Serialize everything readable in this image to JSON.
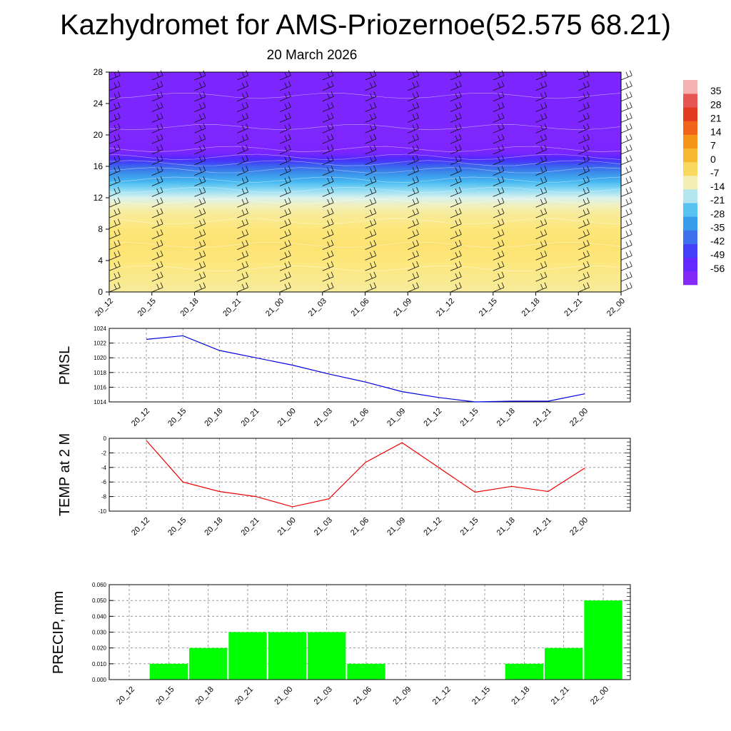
{
  "title": "Kazhydromet for AMS-Priozernoe(52.575 68.21)",
  "subtitle": "20 March 2026",
  "colors": {
    "pmsl_line": "#0000dd",
    "temp_line": "#ee0000",
    "precip_bar": "#00ff00",
    "grid": "#888888",
    "wind_barb": "#111111",
    "contour_line": "#ffffff"
  },
  "chart_data": [
    {
      "type": "heatmap",
      "name": "cross-section",
      "description_units": "temperature °C vs height",
      "x_tick_labels": [
        "20_12",
        "20_15",
        "20_18",
        "20_21",
        "21_00",
        "21_03",
        "21_06",
        "21_09",
        "21_12",
        "21_15",
        "21_18",
        "21_21",
        "22_00"
      ],
      "y_ticks": [
        0,
        4,
        8,
        12,
        16,
        20,
        24,
        28
      ],
      "ylim": [
        0,
        28
      ],
      "temperature_profile": {
        "levels": [
          0,
          2,
          4,
          6,
          8,
          10,
          11,
          12,
          13,
          14,
          15,
          16,
          16.5,
          17,
          17.5,
          18,
          20,
          22,
          24,
          28
        ],
        "values": [
          -9,
          -8,
          -7,
          -6,
          -7,
          -9,
          -11,
          -15,
          -20,
          -26,
          -33,
          -40,
          -45,
          -50,
          -54,
          -56,
          -57,
          -56,
          -56,
          -56
        ]
      },
      "colorbar": {
        "labels": [
          "35",
          "28",
          "21",
          "14",
          "7",
          "0",
          "-7",
          "-14",
          "-21",
          "-28",
          "-35",
          "-42",
          "-49",
          "-56"
        ],
        "values": [
          35,
          28,
          21,
          14,
          7,
          0,
          -7,
          -14,
          -21,
          -28,
          -35,
          -42,
          -49,
          -56
        ],
        "range": [
          -63,
          42
        ]
      }
    },
    {
      "type": "line",
      "name": "pmsl",
      "ylabel": "PMSL",
      "categories": [
        "20_12",
        "20_15",
        "20_18",
        "20_21",
        "21_00",
        "21_03",
        "21_06",
        "21_09",
        "21_12",
        "21_15",
        "21_18",
        "21_21",
        "22_00"
      ],
      "values": [
        1022.5,
        1023.0,
        1021.0,
        1020.0,
        1019.0,
        1017.8,
        1016.7,
        1015.4,
        1014.6,
        1014.0,
        1014.1,
        1014.1,
        1015.1
      ],
      "ylim": [
        1014,
        1024
      ],
      "y_ticks": [
        "1014",
        "1016",
        "1018",
        "1020",
        "1022",
        "1024"
      ],
      "y_tick_values": [
        1014,
        1016,
        1018,
        1020,
        1022,
        1024
      ]
    },
    {
      "type": "line",
      "name": "temp",
      "ylabel": "TEMP at 2 M",
      "categories": [
        "20_12",
        "20_15",
        "20_18",
        "20_21",
        "21_00",
        "21_03",
        "21_06",
        "21_09",
        "21_12",
        "21_15",
        "21_18",
        "21_21",
        "22_00"
      ],
      "values": [
        -0.3,
        -6.0,
        -7.3,
        -8.0,
        -9.4,
        -8.3,
        -3.3,
        -0.6,
        -4.0,
        -7.4,
        -6.6,
        -7.3,
        -4.1
      ],
      "ylim": [
        -10,
        0
      ],
      "y_ticks": [
        "0",
        "-2",
        "-4",
        "-6",
        "-8",
        "-10"
      ],
      "y_tick_values": [
        0,
        -2,
        -4,
        -6,
        -8,
        -10
      ]
    },
    {
      "type": "bar",
      "name": "precip",
      "ylabel": "PRECIP, mm",
      "categories": [
        "20_12",
        "20_15",
        "20_18",
        "20_21",
        "21_00",
        "21_03",
        "21_06",
        "21_09",
        "21_12",
        "21_15",
        "21_18",
        "21_21",
        "22_00"
      ],
      "values": [
        0,
        0.01,
        0.02,
        0.03,
        0.03,
        0.03,
        0.01,
        0,
        0,
        0,
        0.01,
        0.02,
        0.05
      ],
      "ylim": [
        0,
        0.06
      ],
      "y_ticks": [
        "0.000",
        "0.010",
        "0.020",
        "0.030",
        "0.040",
        "0.050",
        "0.060"
      ],
      "y_tick_values": [
        0,
        0.01,
        0.02,
        0.03,
        0.04,
        0.05,
        0.06
      ]
    }
  ]
}
